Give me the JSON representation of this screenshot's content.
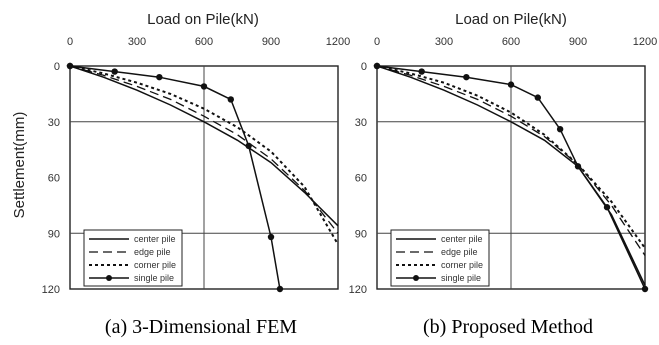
{
  "y_axis_title": "Settlement(mm)",
  "chart_data": [
    {
      "type": "line",
      "title": "Load on Pile(kN)",
      "caption": "(a) 3-Dimensional FEM",
      "xlabel": "Load on Pile(kN)",
      "ylabel": "Settlement(mm)",
      "xlim": [
        0,
        1200
      ],
      "ylim": [
        0,
        120
      ],
      "x_ticks": [
        "0",
        "300",
        "600",
        "900",
        "1200"
      ],
      "y_ticks": [
        "0",
        "30",
        "60",
        "90",
        "120"
      ],
      "y_inverted": true,
      "grid": true,
      "legend_position": "bottom-left",
      "series": [
        {
          "name": "center pile",
          "style": "solid",
          "marker": "none",
          "x": [
            0,
            150,
            300,
            450,
            600,
            750,
            900,
            1050,
            1200
          ],
          "y": [
            0,
            6,
            13,
            21,
            30,
            40,
            52,
            68,
            86
          ]
        },
        {
          "name": "edge pile",
          "style": "long-dash",
          "marker": "none",
          "x": [
            0,
            150,
            300,
            450,
            600,
            750,
            900,
            1050,
            1200
          ],
          "y": [
            0,
            5,
            11,
            18,
            27,
            37,
            50,
            67,
            90
          ]
        },
        {
          "name": "corner pile",
          "style": "short-dash",
          "marker": "none",
          "x": [
            0,
            150,
            300,
            450,
            600,
            750,
            900,
            1050,
            1200
          ],
          "y": [
            0,
            4,
            9,
            15,
            23,
            33,
            46,
            65,
            96
          ]
        },
        {
          "name": "single pile",
          "style": "solid",
          "marker": "circle",
          "x": [
            0,
            200,
            400,
            600,
            720,
            800,
            900,
            940
          ],
          "y": [
            0,
            3,
            6,
            11,
            18,
            43,
            92,
            120
          ]
        }
      ]
    },
    {
      "type": "line",
      "title": "Load on Pile(kN)",
      "caption": "(b) Proposed Method",
      "xlabel": "Load on Pile(kN)",
      "ylabel": "Settlement(mm)",
      "xlim": [
        0,
        1200
      ],
      "ylim": [
        0,
        120
      ],
      "x_ticks": [
        "0",
        "300",
        "600",
        "900",
        "1200"
      ],
      "y_ticks": [
        "0",
        "30",
        "60",
        "90",
        "120"
      ],
      "y_inverted": true,
      "grid": true,
      "legend_position": "bottom-left",
      "series": [
        {
          "name": "center pile",
          "style": "solid",
          "marker": "none",
          "x": [
            0,
            150,
            300,
            450,
            600,
            750,
            900,
            1050,
            1200
          ],
          "y": [
            0,
            6,
            13,
            21,
            30,
            40,
            54,
            80,
            118
          ]
        },
        {
          "name": "edge pile",
          "style": "long-dash",
          "marker": "none",
          "x": [
            0,
            150,
            300,
            450,
            600,
            750,
            900,
            1050,
            1200
          ],
          "y": [
            0,
            5,
            11,
            18,
            27,
            38,
            53,
            75,
            102
          ]
        },
        {
          "name": "corner pile",
          "style": "short-dash",
          "marker": "none",
          "x": [
            0,
            150,
            300,
            450,
            600,
            750,
            900,
            1050,
            1200
          ],
          "y": [
            0,
            4,
            9,
            16,
            25,
            37,
            53,
            73,
            98
          ]
        },
        {
          "name": "single pile",
          "style": "solid",
          "marker": "circle",
          "x": [
            0,
            200,
            400,
            600,
            720,
            820,
            900,
            1030,
            1200
          ],
          "y": [
            0,
            3,
            6,
            10,
            17,
            34,
            54,
            76,
            120
          ]
        }
      ]
    }
  ]
}
